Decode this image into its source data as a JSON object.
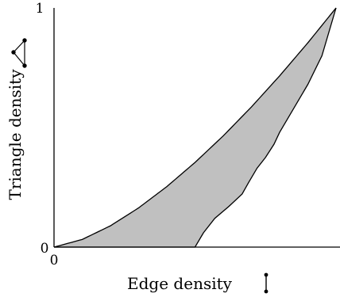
{
  "chart_data": {
    "type": "area",
    "xlabel": "Edge density",
    "ylabel": "Triangle density",
    "xlim": [
      0,
      1
    ],
    "ylim": [
      0,
      1
    ],
    "x_ticks": [
      "0"
    ],
    "y_ticks": [
      "0",
      "1"
    ],
    "grid": false,
    "legend": "none",
    "fill_color": "#c0c0c0",
    "line_color": "#000000",
    "upper_boundary": {
      "description": "y = x^(3/2)",
      "points": [
        [
          0,
          0
        ],
        [
          0.1,
          0.032
        ],
        [
          0.2,
          0.089
        ],
        [
          0.3,
          0.164
        ],
        [
          0.4,
          0.253
        ],
        [
          0.5,
          0.354
        ],
        [
          0.6,
          0.465
        ],
        [
          0.7,
          0.586
        ],
        [
          0.8,
          0.716
        ],
        [
          0.9,
          0.854
        ],
        [
          1,
          1
        ]
      ]
    },
    "lower_boundary": {
      "description": "scalloped lower envelope",
      "points": [
        [
          0,
          0
        ],
        [
          0.5,
          0
        ],
        [
          0.53,
          0.06
        ],
        [
          0.57,
          0.12
        ],
        [
          0.62,
          0.17
        ],
        [
          0.667,
          0.222
        ],
        [
          0.69,
          0.27
        ],
        [
          0.72,
          0.33
        ],
        [
          0.75,
          0.375
        ],
        [
          0.78,
          0.43
        ],
        [
          0.8,
          0.48
        ],
        [
          0.83,
          0.54
        ],
        [
          0.86,
          0.6
        ],
        [
          0.9,
          0.68
        ],
        [
          0.95,
          0.8
        ],
        [
          1,
          1
        ]
      ]
    },
    "icons": {
      "y_axis": "triangle-graph-icon",
      "x_axis": "edge-graph-icon"
    }
  }
}
